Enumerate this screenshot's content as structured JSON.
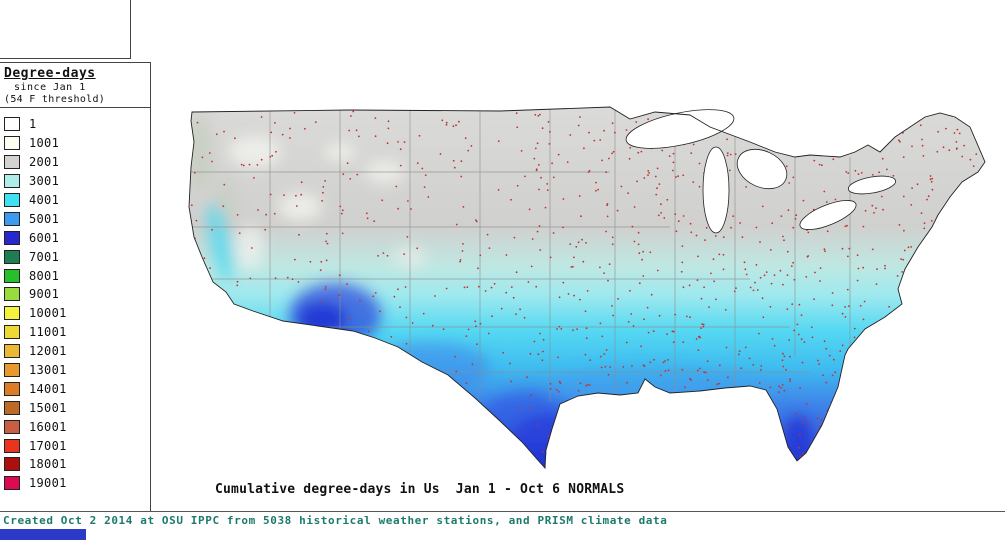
{
  "legend": {
    "title": "Degree-days",
    "subtitle_line1": "since Jan 1",
    "subtitle_line2": "(54 F threshold)",
    "items": [
      {
        "value": "1",
        "color": "#ffffff"
      },
      {
        "value": "1001",
        "color": "#fdfdf4"
      },
      {
        "value": "2001",
        "color": "#d2d2d2"
      },
      {
        "value": "3001",
        "color": "#aeeeea"
      },
      {
        "value": "4001",
        "color": "#3fe0f0"
      },
      {
        "value": "5001",
        "color": "#3e9aef"
      },
      {
        "value": "6001",
        "color": "#2828cf"
      },
      {
        "value": "7001",
        "color": "#1e7d52"
      },
      {
        "value": "8001",
        "color": "#27bf2b"
      },
      {
        "value": "9001",
        "color": "#97dd3f"
      },
      {
        "value": "10001",
        "color": "#f4f23c"
      },
      {
        "value": "11001",
        "color": "#eed836"
      },
      {
        "value": "12001",
        "color": "#eab832"
      },
      {
        "value": "13001",
        "color": "#e8982c"
      },
      {
        "value": "14001",
        "color": "#db7d26"
      },
      {
        "value": "15001",
        "color": "#bd6a26"
      },
      {
        "value": "16001",
        "color": "#c75f43"
      },
      {
        "value": "17001",
        "color": "#e93420"
      },
      {
        "value": "18001",
        "color": "#ad0f0f"
      },
      {
        "value": "19001",
        "color": "#dc0a4e"
      }
    ]
  },
  "map": {
    "caption": "Cumulative degree-days in Us  Jan 1 - Oct 6 NORMALS"
  },
  "footer": {
    "credit": "Created Oct 2 2014 at OSU IPPC from 5038 historical weather stations, and PRISM climate data"
  },
  "colors": {
    "station_dot": "#c03333",
    "footer_text": "#1d7a6b",
    "bottom_bar": "#2b3bc8",
    "map_gray_north": "#d2d2d0",
    "map_cyan_mid": "#46d4f2",
    "map_blue_south": "#2531d3"
  }
}
